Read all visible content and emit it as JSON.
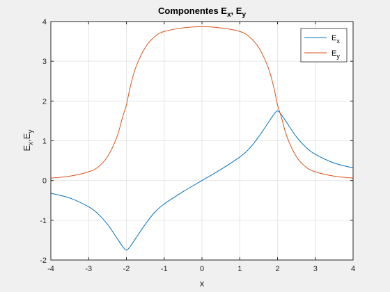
{
  "chart_data": {
    "type": "line",
    "title": {
      "main": "Componentes E",
      "sub1": "x",
      "sep": ", E",
      "sub2": "y"
    },
    "xlabel": "x",
    "ylabel": {
      "a": "E",
      "a_sub": "x",
      "comma": ",E",
      "b_sub": "y"
    },
    "xlim": [
      -4,
      4
    ],
    "ylim": [
      -2,
      4
    ],
    "xticks": [
      -4,
      -3,
      -2,
      -1,
      0,
      1,
      2,
      3,
      4
    ],
    "yticks": [
      -2,
      -1,
      0,
      1,
      2,
      3,
      4
    ],
    "grid": true,
    "legend_position": "top-right",
    "series": [
      {
        "name": "E",
        "name_sub": "x",
        "color": "#0072bd",
        "x": [
          -4,
          -3.5,
          -3,
          -2.75,
          -2.5,
          -2.25,
          -2.1,
          -2,
          -1.9,
          -1.75,
          -1.5,
          -1.25,
          -1,
          -0.5,
          0,
          0.5,
          1,
          1.25,
          1.5,
          1.75,
          1.9,
          2,
          2.1,
          2.25,
          2.5,
          2.75,
          3,
          3.5,
          4
        ],
        "values": [
          -0.32,
          -0.44,
          -0.66,
          -0.84,
          -1.1,
          -1.45,
          -1.66,
          -1.75,
          -1.66,
          -1.45,
          -1.1,
          -0.8,
          -0.59,
          -0.28,
          0.0,
          0.28,
          0.59,
          0.8,
          1.1,
          1.45,
          1.66,
          1.75,
          1.66,
          1.45,
          1.1,
          0.84,
          0.66,
          0.44,
          0.32
        ]
      },
      {
        "name": "E",
        "name_sub": "y",
        "color": "#d95319",
        "x": [
          -4,
          -3.5,
          -3,
          -2.75,
          -2.5,
          -2.25,
          -2.1,
          -2,
          -1.9,
          -1.75,
          -1.5,
          -1.25,
          -1,
          -0.5,
          0,
          0.5,
          1,
          1.25,
          1.5,
          1.75,
          1.9,
          2,
          2.1,
          2.25,
          2.5,
          2.75,
          3,
          3.5,
          4
        ],
        "values": [
          0.06,
          0.11,
          0.22,
          0.34,
          0.6,
          1.1,
          1.6,
          1.9,
          2.35,
          2.85,
          3.35,
          3.62,
          3.75,
          3.84,
          3.87,
          3.84,
          3.75,
          3.62,
          3.35,
          2.85,
          2.35,
          1.9,
          1.6,
          1.1,
          0.6,
          0.34,
          0.22,
          0.11,
          0.06
        ]
      }
    ]
  }
}
